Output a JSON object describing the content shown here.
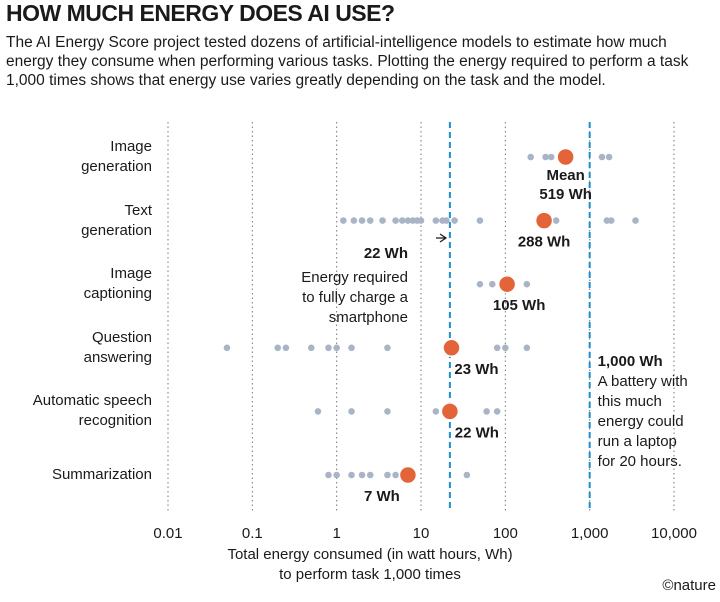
{
  "chart_data": {
    "type": "dot",
    "title": "HOW MUCH ENERGY DOES AI USE?",
    "subtitle": "The AI Energy Score project tested dozens of artificial-intelligence models to estimate how much energy they consume when performing various tasks. Plotting the energy required to perform a task 1,000 times shows that energy use varies greatly depending on the task and the model.",
    "categories": [
      "Image\ngeneration",
      "Text\ngeneration",
      "Image\ncaptioning",
      "Question\nanswering",
      "Automatic speech\nrecognition",
      "Summarization"
    ],
    "models": [
      [
        200,
        300,
        350,
        450,
        1400,
        1700
      ],
      [
        1.2,
        1.6,
        2,
        2.5,
        3.5,
        5,
        6,
        7,
        8,
        9,
        10,
        15,
        18,
        20,
        25,
        50,
        250,
        400,
        1600,
        1800,
        3500
      ],
      [
        50,
        70,
        90,
        120,
        180
      ],
      [
        0.05,
        0.2,
        0.25,
        0.5,
        0.8,
        1,
        1.5,
        4,
        20,
        25,
        80,
        100,
        180
      ],
      [
        0.6,
        1.5,
        4,
        15,
        20,
        25,
        60,
        80
      ],
      [
        0.8,
        1,
        1.5,
        2,
        2.5,
        4,
        5,
        8,
        35
      ]
    ],
    "models_color": "#a9b5c6",
    "mean_label": "Mean",
    "values": [
      519,
      288,
      105,
      23,
      22,
      7
    ],
    "value_labels": [
      "519 Wh",
      "288 Wh",
      "105 Wh",
      "23 Wh",
      "22 Wh",
      "7 Wh"
    ],
    "color": "#e4643a",
    "reference_lines": [
      {
        "value": 22,
        "label": "22 Wh",
        "note": "Energy required\nto fully charge a\nsmartphone"
      },
      {
        "value": 1000,
        "label": "1,000 Wh",
        "note": "A battery with\nthis much\nenergy could\nrun a laptop\nfor 20 hours."
      }
    ],
    "reference_color": "#1a8fcb",
    "log_x": true,
    "xlim": [
      0.01,
      10000
    ],
    "xticks": [
      0.01,
      0.1,
      1,
      10,
      100,
      {
        "value": 1000,
        "label": "1,000"
      },
      {
        "value": 10000,
        "label": "10,000"
      }
    ],
    "grid": true,
    "xlabel": "Total energy consumed (in watt hours, Wh)\nto perform task 1,000 times",
    "source": "©nature"
  }
}
